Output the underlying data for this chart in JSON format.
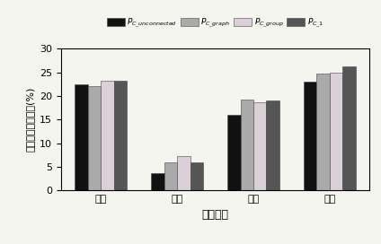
{
  "categories": [
    "表情",
    "光照",
    "眼镜",
    "围巾"
  ],
  "series": {
    "P_C_unconnected": [
      22.5,
      3.7,
      16.0,
      23.0
    ],
    "P_C_graph": [
      22.0,
      6.0,
      19.3,
      24.7
    ],
    "P_C_group": [
      23.2,
      7.3,
      18.7,
      25.0
    ],
    "P_C_1": [
      23.2,
      6.0,
      19.1,
      26.2
    ]
  },
  "colors": {
    "P_C_unconnected": "#111111",
    "P_C_graph": "#aaaaaa",
    "P_C_group": "#dcd0d8",
    "P_C_1": "#555555"
  },
  "legend_labels": {
    "P_C_unconnected": "P_C_unconnected",
    "P_C_graph": "P_C_graph",
    "P_C_group": "P_C_group",
    "P_C_1": "P_C_1"
  },
  "legend_math": {
    "P_C_unconnected": "$P_{C\\_unconnected}$",
    "P_C_graph": "$P_{C\\_graph}$",
    "P_C_group": "$P_{C\\_group}$",
    "P_C_1": "$P_{C\\_1}$"
  },
  "xlabel": "样本类型",
  "ylabel": "平均人脸识别误率(%)",
  "ylim": [
    0,
    30
  ],
  "yticks": [
    0,
    5,
    10,
    15,
    20,
    25,
    30
  ],
  "bar_width": 0.17,
  "figsize": [
    4.24,
    2.72
  ],
  "dpi": 100
}
